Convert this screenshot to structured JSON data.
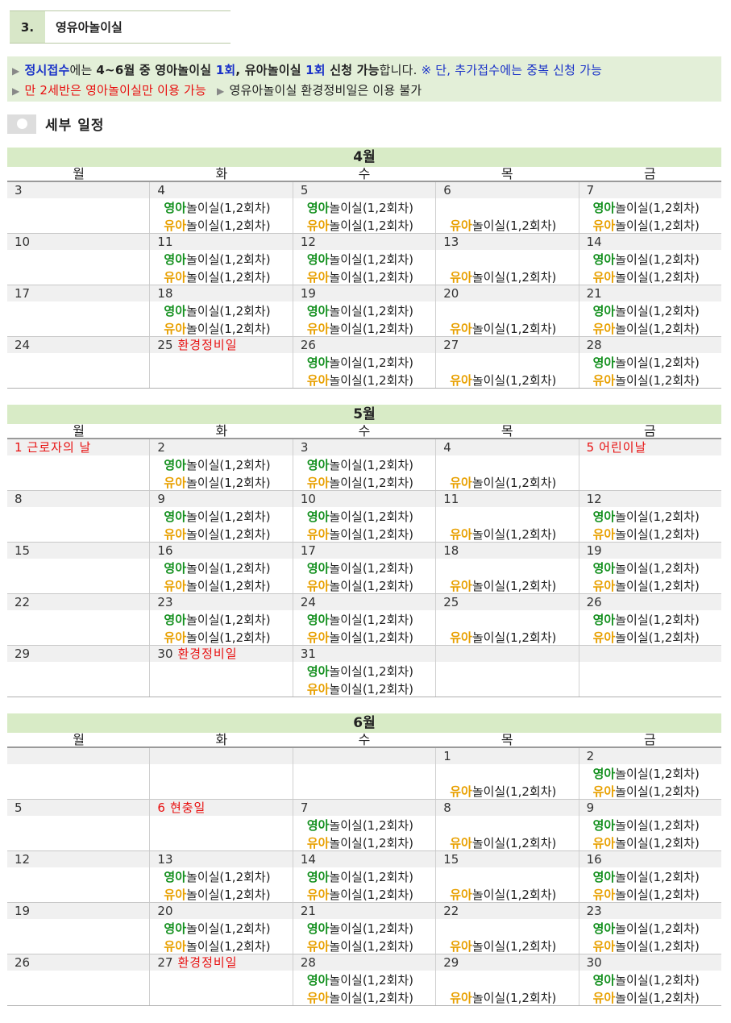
{
  "section": {
    "number": "3.",
    "title": "영유아놀이실"
  },
  "notice": {
    "line1": {
      "p1": "정시접수",
      "p2": "에는 ",
      "p3": "4~6월 중 영아놀이실 ",
      "p4": "1회",
      "p5": ", 유아놀이실 ",
      "p6": "1회",
      "p7": " 신청 가능",
      "p8": "합니다. ",
      "p9": "※ 단, 추가접수에는 중복 신청 가능"
    },
    "line2": {
      "p1": "만 2세반은 영아놀이실만 이용 가능",
      "p2": "영유아놀이실 환경정비일은 이용 불가"
    }
  },
  "subtitle": "세부 일정",
  "weekday_headers": [
    "월",
    "화",
    "수",
    "목",
    "금"
  ],
  "activity": {
    "infant_prefix": "영아",
    "toddler_prefix": "유아",
    "suffix": "놀이실(1,2회차)"
  },
  "colors": {
    "infant": "#14901f",
    "toddler": "#e8a000",
    "holiday": "#e81010",
    "month_bar": "#d8ebc6"
  },
  "months": [
    {
      "name": "4월",
      "weeks": [
        [
          {
            "day": "3"
          },
          {
            "day": "4",
            "a1": true,
            "a2": true
          },
          {
            "day": "5",
            "a1": true,
            "a2": true
          },
          {
            "day": "6",
            "a2": true
          },
          {
            "day": "7",
            "a1": true,
            "a2": true
          }
        ],
        [
          {
            "day": "10"
          },
          {
            "day": "11",
            "a1": true,
            "a2": true
          },
          {
            "day": "12",
            "a1": true,
            "a2": true
          },
          {
            "day": "13",
            "a2": true
          },
          {
            "day": "14",
            "a1": true,
            "a2": true
          }
        ],
        [
          {
            "day": "17"
          },
          {
            "day": "18",
            "a1": true,
            "a2": true
          },
          {
            "day": "19",
            "a1": true,
            "a2": true
          },
          {
            "day": "20",
            "a2": true
          },
          {
            "day": "21",
            "a1": true,
            "a2": true
          }
        ],
        [
          {
            "day": "24"
          },
          {
            "day": "25",
            "holiday": "환경정비일"
          },
          {
            "day": "26",
            "a1": true,
            "a2": true
          },
          {
            "day": "27",
            "a2": true
          },
          {
            "day": "28",
            "a1": true,
            "a2": true
          }
        ]
      ]
    },
    {
      "name": "5월",
      "weeks": [
        [
          {
            "day": "1",
            "holiday": "근로자의 날",
            "red": true
          },
          {
            "day": "2",
            "a1": true,
            "a2": true
          },
          {
            "day": "3",
            "a1": true,
            "a2": true
          },
          {
            "day": "4",
            "a2": true
          },
          {
            "day": "5",
            "holiday": "어린이날",
            "red": true
          }
        ],
        [
          {
            "day": "8"
          },
          {
            "day": "9",
            "a1": true,
            "a2": true
          },
          {
            "day": "10",
            "a1": true,
            "a2": true
          },
          {
            "day": "11",
            "a2": true
          },
          {
            "day": "12",
            "a1": true,
            "a2": true
          }
        ],
        [
          {
            "day": "15"
          },
          {
            "day": "16",
            "a1": true,
            "a2": true
          },
          {
            "day": "17",
            "a1": true,
            "a2": true
          },
          {
            "day": "18",
            "a2": true
          },
          {
            "day": "19",
            "a1": true,
            "a2": true
          }
        ],
        [
          {
            "day": "22"
          },
          {
            "day": "23",
            "a1": true,
            "a2": true
          },
          {
            "day": "24",
            "a1": true,
            "a2": true
          },
          {
            "day": "25",
            "a2": true
          },
          {
            "day": "26",
            "a1": true,
            "a2": true
          }
        ],
        [
          {
            "day": "29"
          },
          {
            "day": "30",
            "holiday": "환경정비일"
          },
          {
            "day": "31",
            "a1": true,
            "a2": true
          },
          {
            "day": ""
          },
          {
            "day": ""
          }
        ]
      ]
    },
    {
      "name": "6월",
      "weeks": [
        [
          {
            "day": ""
          },
          {
            "day": ""
          },
          {
            "day": ""
          },
          {
            "day": "1",
            "a2": true
          },
          {
            "day": "2",
            "a1": true,
            "a2": true
          }
        ],
        [
          {
            "day": "5"
          },
          {
            "day": "6",
            "holiday": "현충일",
            "red": true
          },
          {
            "day": "7",
            "a1": true,
            "a2": true
          },
          {
            "day": "8",
            "a2": true
          },
          {
            "day": "9",
            "a1": true,
            "a2": true
          }
        ],
        [
          {
            "day": "12"
          },
          {
            "day": "13",
            "a1": true,
            "a2": true
          },
          {
            "day": "14",
            "a1": true,
            "a2": true
          },
          {
            "day": "15",
            "a2": true
          },
          {
            "day": "16",
            "a1": true,
            "a2": true
          }
        ],
        [
          {
            "day": "19"
          },
          {
            "day": "20",
            "a1": true,
            "a2": true
          },
          {
            "day": "21",
            "a1": true,
            "a2": true
          },
          {
            "day": "22",
            "a2": true
          },
          {
            "day": "23",
            "a1": true,
            "a2": true
          }
        ],
        [
          {
            "day": "26"
          },
          {
            "day": "27",
            "holiday": "환경정비일"
          },
          {
            "day": "28",
            "a1": true,
            "a2": true
          },
          {
            "day": "29",
            "a2": true
          },
          {
            "day": "30",
            "a1": true,
            "a2": true
          }
        ]
      ]
    }
  ]
}
